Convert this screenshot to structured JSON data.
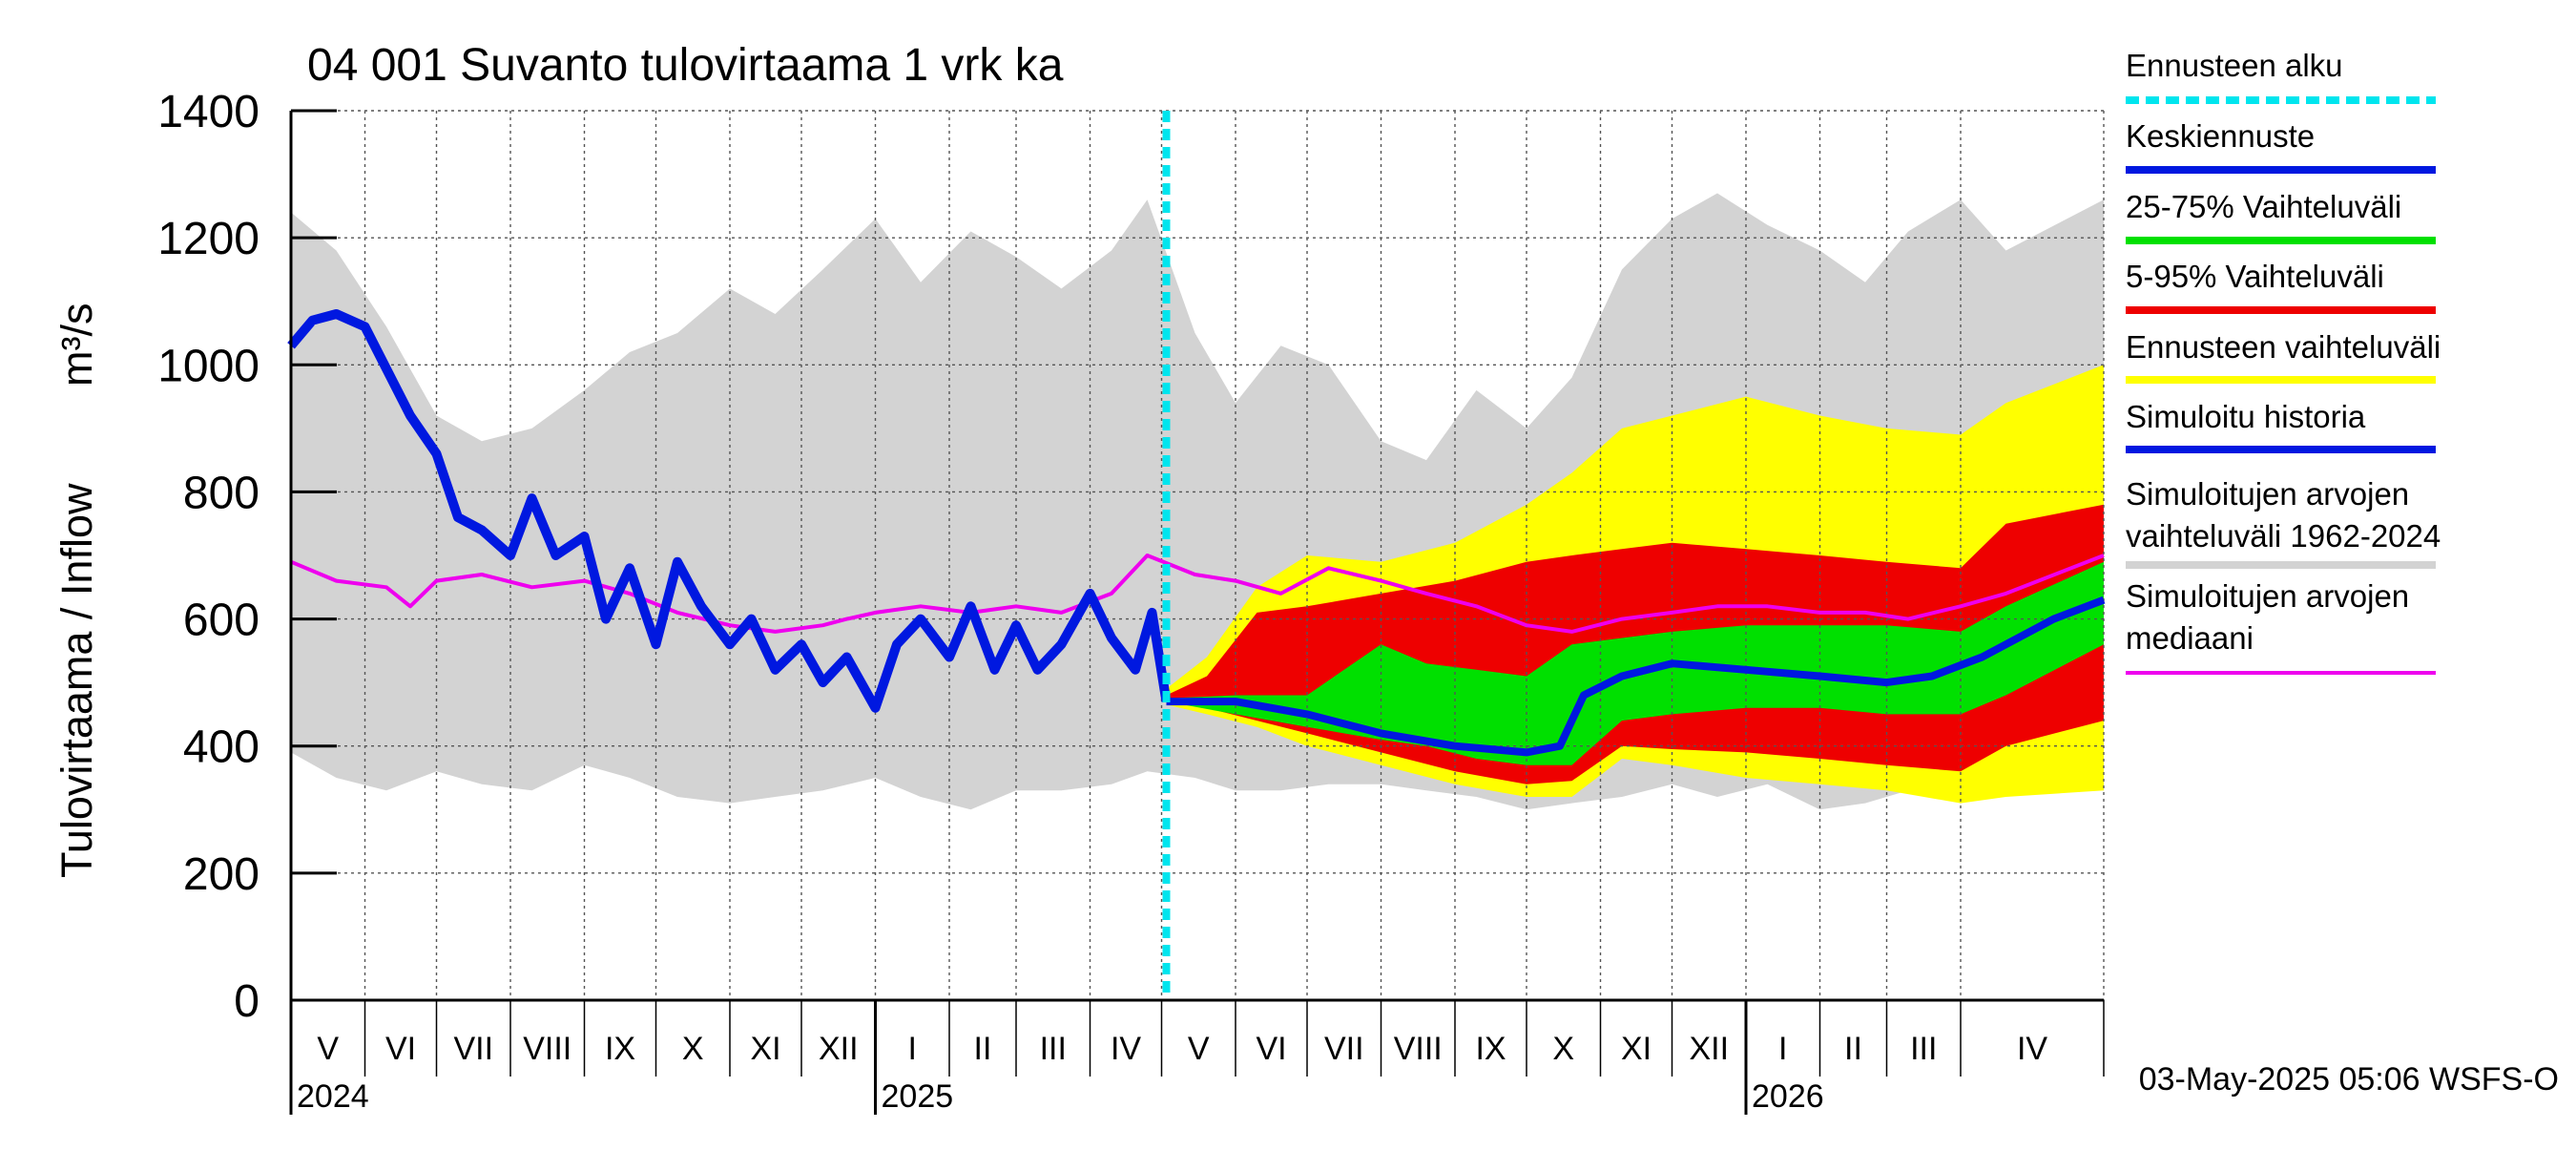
{
  "chart_data": {
    "type": "area",
    "title": "04 001 Suvanto tulovirtaama 1 vrk ka",
    "ylabel_left": "Tulovirtaama / Inflow",
    "ylabel_unit": "m³/s",
    "ylim": [
      0,
      1400
    ],
    "yticks": [
      0,
      200,
      400,
      600,
      800,
      1000,
      1200,
      1400
    ],
    "x_start": "2024-05-01",
    "x_end": "2026-05-31",
    "forecast_start": "2025-05-03",
    "months": [
      {
        "label": "V",
        "start": "2024-05-01"
      },
      {
        "label": "VI",
        "start": "2024-06-01"
      },
      {
        "label": "VII",
        "start": "2024-07-01"
      },
      {
        "label": "VIII",
        "start": "2024-08-01"
      },
      {
        "label": "IX",
        "start": "2024-09-01"
      },
      {
        "label": "X",
        "start": "2024-10-01"
      },
      {
        "label": "XI",
        "start": "2024-11-01"
      },
      {
        "label": "XII",
        "start": "2024-12-01"
      },
      {
        "label": "I",
        "start": "2025-01-01"
      },
      {
        "label": "II",
        "start": "2025-02-01"
      },
      {
        "label": "III",
        "start": "2025-03-01"
      },
      {
        "label": "IV",
        "start": "2025-04-01"
      },
      {
        "label": "V",
        "start": "2025-05-01"
      },
      {
        "label": "VI",
        "start": "2025-06-01"
      },
      {
        "label": "VII",
        "start": "2025-07-01"
      },
      {
        "label": "VIII",
        "start": "2025-08-01"
      },
      {
        "label": "IX",
        "start": "2025-09-01"
      },
      {
        "label": "X",
        "start": "2025-10-01"
      },
      {
        "label": "XI",
        "start": "2025-11-01"
      },
      {
        "label": "XII",
        "start": "2025-12-01"
      },
      {
        "label": "I",
        "start": "2026-01-01"
      },
      {
        "label": "II",
        "start": "2026-02-01"
      },
      {
        "label": "III",
        "start": "2026-03-01"
      },
      {
        "label": "IV",
        "start": "2026-04-01"
      }
    ],
    "year_labels": [
      {
        "label": "2024",
        "date": "2024-05-01"
      },
      {
        "label": "2025",
        "date": "2025-01-01"
      },
      {
        "label": "2026",
        "date": "2026-01-01"
      }
    ],
    "legend": [
      {
        "label": "Ennusteen alku",
        "color": "#00e5ee",
        "style": "dashed"
      },
      {
        "label": "Keskiennuste",
        "color": "#0018e0",
        "style": "solid"
      },
      {
        "label": "25-75% Vaihteluväli",
        "color": "#00e000",
        "style": "solid"
      },
      {
        "label": "5-95% Vaihteluväli",
        "color": "#ee0000",
        "style": "solid"
      },
      {
        "label": "Ennusteen vaihteluväli",
        "color": "#ffff00",
        "style": "solid"
      },
      {
        "label": "Simuloitu historia",
        "color": "#0018e0",
        "style": "solid"
      },
      {
        "label": "Simuloitujen arvojen vaihteluväli 1962-2024",
        "color": "#d3d3d3",
        "style": "solid"
      },
      {
        "label": "Simuloitujen arvojen mediaani",
        "color": "#ee00ee",
        "style": "solid"
      }
    ],
    "hist_range": {
      "x": [
        "2024-05-01",
        "2024-05-20",
        "2024-06-10",
        "2024-07-01",
        "2024-07-20",
        "2024-08-10",
        "2024-09-01",
        "2024-09-20",
        "2024-10-10",
        "2024-11-01",
        "2024-11-20",
        "2024-12-10",
        "2025-01-01",
        "2025-01-20",
        "2025-02-10",
        "2025-03-01",
        "2025-03-20",
        "2025-04-10",
        "2025-04-25",
        "2025-05-15",
        "2025-06-01",
        "2025-06-20",
        "2025-07-10",
        "2025-08-01",
        "2025-08-20",
        "2025-09-10",
        "2025-10-01",
        "2025-10-20",
        "2025-11-10",
        "2025-12-01",
        "2025-12-20",
        "2026-01-10",
        "2026-02-01",
        "2026-02-20",
        "2026-03-10",
        "2026-04-01",
        "2026-04-20",
        "2026-05-31"
      ],
      "low": [
        390,
        350,
        330,
        360,
        340,
        330,
        370,
        350,
        320,
        310,
        320,
        330,
        350,
        320,
        300,
        330,
        330,
        340,
        360,
        350,
        330,
        330,
        340,
        340,
        330,
        320,
        300,
        310,
        320,
        340,
        320,
        340,
        300,
        310,
        330,
        340,
        360,
        380
      ],
      "high": [
        1240,
        1180,
        1060,
        920,
        880,
        900,
        960,
        1020,
        1050,
        1120,
        1080,
        1150,
        1230,
        1130,
        1210,
        1170,
        1120,
        1180,
        1260,
        1050,
        940,
        1030,
        1000,
        880,
        850,
        960,
        900,
        980,
        1150,
        1230,
        1270,
        1220,
        1180,
        1130,
        1210,
        1260,
        1180,
        1260
      ]
    },
    "forecast_5_95": {
      "x": [
        "2025-05-03",
        "2025-05-20",
        "2025-06-10",
        "2025-07-01",
        "2025-08-01",
        "2025-09-01",
        "2025-10-01",
        "2025-10-20",
        "2025-11-10",
        "2025-12-01",
        "2026-01-01",
        "2026-02-01",
        "2026-03-01",
        "2026-04-01",
        "2026-04-20",
        "2026-05-31"
      ],
      "low": [
        470,
        460,
        440,
        420,
        390,
        360,
        340,
        345,
        400,
        395,
        390,
        380,
        370,
        360,
        400,
        440
      ],
      "high": [
        480,
        510,
        610,
        620,
        640,
        660,
        690,
        700,
        710,
        720,
        710,
        700,
        690,
        680,
        750,
        780
      ]
    },
    "forecast_yellow": {
      "x": [
        "2025-05-03",
        "2025-05-20",
        "2025-06-10",
        "2025-07-01",
        "2025-08-01",
        "2025-09-01",
        "2025-10-01",
        "2025-10-20",
        "2025-11-10",
        "2025-12-01",
        "2026-01-01",
        "2026-02-01",
        "2026-03-01",
        "2026-04-01",
        "2026-04-20",
        "2026-05-31"
      ],
      "low": [
        465,
        450,
        430,
        400,
        370,
        340,
        320,
        320,
        380,
        370,
        350,
        340,
        330,
        310,
        320,
        330
      ],
      "high": [
        490,
        540,
        650,
        700,
        690,
        720,
        780,
        830,
        900,
        920,
        950,
        920,
        900,
        890,
        940,
        1000
      ]
    },
    "forecast_25_75": {
      "x": [
        "2025-05-03",
        "2025-06-01",
        "2025-07-01",
        "2025-08-01",
        "2025-08-20",
        "2025-09-10",
        "2025-10-01",
        "2025-10-20",
        "2025-11-10",
        "2025-12-01",
        "2026-01-01",
        "2026-02-01",
        "2026-03-01",
        "2026-04-01",
        "2026-04-20",
        "2026-05-31"
      ],
      "low": [
        470,
        450,
        430,
        410,
        400,
        380,
        370,
        370,
        440,
        450,
        460,
        460,
        450,
        450,
        480,
        560
      ],
      "high": [
        475,
        480,
        480,
        560,
        530,
        520,
        510,
        560,
        570,
        580,
        590,
        590,
        590,
        580,
        620,
        690
      ]
    },
    "forecast_median": {
      "x": [
        "2025-05-03",
        "2025-06-01",
        "2025-07-01",
        "2025-08-01",
        "2025-09-01",
        "2025-10-01",
        "2025-10-15",
        "2025-10-25",
        "2025-11-10",
        "2025-12-01",
        "2026-01-01",
        "2026-02-01",
        "2026-03-01",
        "2026-03-20",
        "2026-04-10",
        "2026-05-10",
        "2026-05-31"
      ],
      "y": [
        470,
        470,
        450,
        420,
        400,
        390,
        400,
        480,
        510,
        530,
        520,
        510,
        500,
        510,
        540,
        600,
        630
      ]
    },
    "sim_history": {
      "x": [
        "2024-05-01",
        "2024-05-10",
        "2024-05-20",
        "2024-06-01",
        "2024-06-20",
        "2024-07-01",
        "2024-07-10",
        "2024-07-20",
        "2024-08-01",
        "2024-08-10",
        "2024-08-20",
        "2024-09-01",
        "2024-09-10",
        "2024-09-20",
        "2024-10-01",
        "2024-10-10",
        "2024-10-20",
        "2024-11-01",
        "2024-11-10",
        "2024-11-20",
        "2024-12-01",
        "2024-12-10",
        "2024-12-20",
        "2025-01-01",
        "2025-01-10",
        "2025-01-20",
        "2025-02-01",
        "2025-02-10",
        "2025-02-20",
        "2025-03-01",
        "2025-03-10",
        "2025-03-20",
        "2025-04-01",
        "2025-04-10",
        "2025-04-20",
        "2025-04-27",
        "2025-05-03"
      ],
      "y": [
        1030,
        1070,
        1080,
        1060,
        920,
        860,
        760,
        740,
        700,
        790,
        700,
        730,
        600,
        680,
        560,
        690,
        620,
        560,
        600,
        520,
        560,
        500,
        540,
        460,
        560,
        600,
        540,
        620,
        520,
        590,
        520,
        560,
        640,
        570,
        520,
        610,
        470
      ]
    },
    "hist_median": {
      "x": [
        "2024-05-01",
        "2024-05-20",
        "2024-06-10",
        "2024-06-20",
        "2024-07-01",
        "2024-07-20",
        "2024-08-10",
        "2024-09-01",
        "2024-09-20",
        "2024-10-10",
        "2024-11-01",
        "2024-11-20",
        "2024-12-10",
        "2024-12-20",
        "2025-01-01",
        "2025-01-20",
        "2025-02-10",
        "2025-03-01",
        "2025-03-20",
        "2025-04-10",
        "2025-04-25",
        "2025-05-15",
        "2025-06-01",
        "2025-06-20",
        "2025-07-10",
        "2025-08-01",
        "2025-08-20",
        "2025-09-10",
        "2025-10-01",
        "2025-10-20",
        "2025-11-10",
        "2025-12-01",
        "2025-12-20",
        "2026-01-10",
        "2026-02-01",
        "2026-02-20",
        "2026-03-10",
        "2026-04-01",
        "2026-04-20",
        "2026-05-31"
      ],
      "y": [
        690,
        660,
        650,
        620,
        660,
        670,
        650,
        660,
        640,
        610,
        590,
        580,
        590,
        600,
        610,
        620,
        610,
        620,
        610,
        640,
        700,
        670,
        660,
        640,
        680,
        660,
        640,
        620,
        590,
        580,
        600,
        610,
        620,
        620,
        610,
        610,
        600,
        620,
        640,
        700
      ]
    },
    "timestamp": "03-May-2025 05:06 WSFS-O"
  }
}
